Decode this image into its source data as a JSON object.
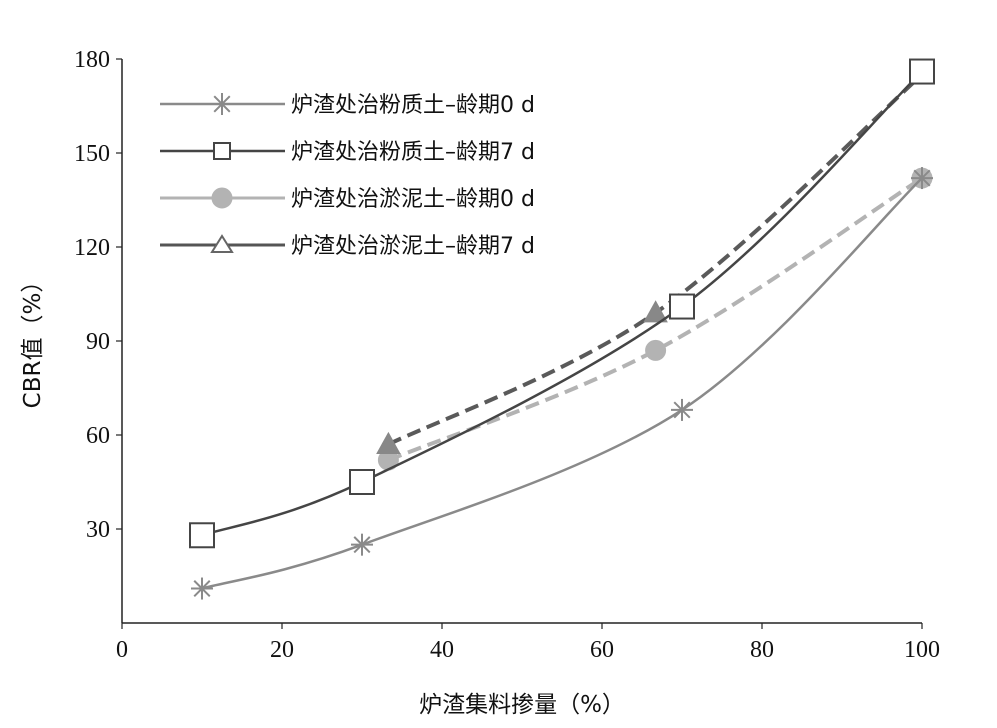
{
  "chart_data": {
    "type": "line",
    "title": "",
    "xlabel": "炉渣集料掺量（%）",
    "ylabel": "CBR值（%）",
    "xlim": [
      0,
      100
    ],
    "ylim": [
      0,
      180
    ],
    "xticks": [
      "0",
      "20",
      "40",
      "60",
      "80",
      "100"
    ],
    "yticks": [
      "30",
      "60",
      "90",
      "120",
      "150",
      "180"
    ],
    "grid": false,
    "legend_position": "top-left",
    "series": [
      {
        "name": "炉渣处治粉质土–龄期0 d",
        "marker": "asterisk",
        "line_style": "solid",
        "color": "#8a8a8a",
        "x": [
          10,
          30,
          70,
          100
        ],
        "y": [
          11,
          25,
          68,
          142
        ]
      },
      {
        "name": "炉渣处治粉质土–龄期7 d",
        "marker": "square",
        "line_style": "solid",
        "color": "#454545",
        "x": [
          10,
          30,
          70,
          100
        ],
        "y": [
          28,
          45,
          101,
          176
        ]
      },
      {
        "name": "炉渣处治淤泥土–龄期0 d",
        "marker": "circle",
        "line_style": "dashed",
        "color": "#b3b3b3",
        "x": [
          33.3,
          66.7,
          100
        ],
        "y": [
          52,
          87,
          142
        ]
      },
      {
        "name": "炉渣处治淤泥土–龄期7 d",
        "marker": "triangle",
        "line_style": "dashed",
        "color": "#5a5a5a",
        "x": [
          33.3,
          66.7,
          100
        ],
        "y": [
          57,
          99,
          175
        ]
      }
    ]
  }
}
